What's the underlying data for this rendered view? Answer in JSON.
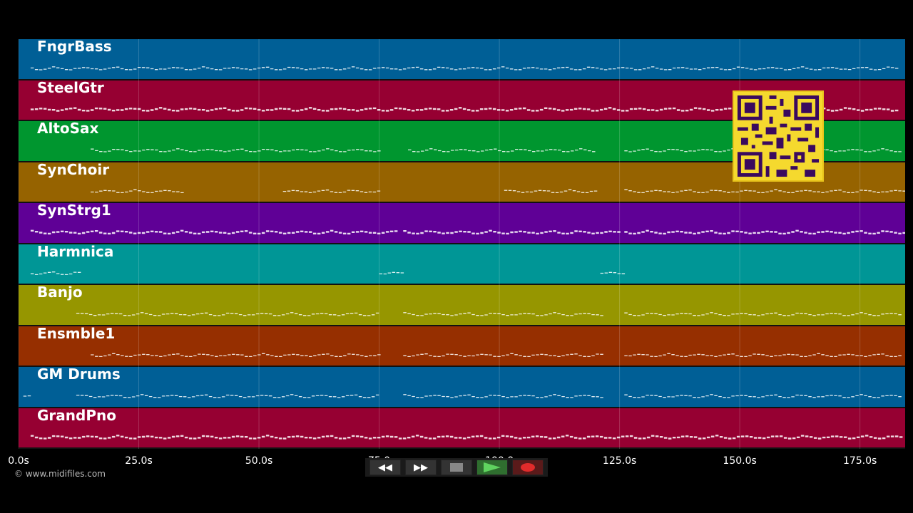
{
  "tracks": [
    {
      "name": "FngrBass",
      "color": "#005f96"
    },
    {
      "name": "SteelGtr",
      "color": "#960032"
    },
    {
      "name": "AltoSax",
      "color": "#00962f"
    },
    {
      "name": "SynChoir",
      "color": "#966300"
    },
    {
      "name": "SynStrg1",
      "color": "#5f0096"
    },
    {
      "name": "Harmnica",
      "color": "#009696"
    },
    {
      "name": "Banjo",
      "color": "#969600"
    },
    {
      "name": "Ensmble1",
      "color": "#962f00"
    },
    {
      "name": "GM Drums",
      "color": "#005f96"
    },
    {
      "name": "GrandPno",
      "color": "#960032"
    }
  ],
  "timeline": {
    "ticks": [
      "0.0s",
      "25.0s",
      "50.0s",
      "75.0",
      "100.0",
      "125.0s",
      "150.0s",
      "175.0s"
    ],
    "tick_seconds": [
      0,
      25,
      50,
      75,
      100,
      125,
      150,
      175
    ],
    "max_seconds": 184.4
  },
  "copyright": "© www.midifiles.com",
  "transport": {
    "rewind_label": "◀◀",
    "forward_label": "▶▶",
    "stop_icon": "stop-icon",
    "play_icon": "play-icon",
    "record_icon": "record-icon"
  },
  "qr_code": {
    "icon": "qr-code-icon"
  },
  "note_segments": [
    {
      "track": 0,
      "ranges": [
        [
          2.5,
          183
        ]
      ]
    },
    {
      "track": 1,
      "ranges": [
        [
          2.5,
          183
        ]
      ]
    },
    {
      "track": 2,
      "ranges": [
        [
          15,
          75
        ],
        [
          81,
          120
        ],
        [
          126,
          183
        ]
      ]
    },
    {
      "track": 3,
      "ranges": [
        [
          15,
          34
        ],
        [
          55,
          75
        ],
        [
          101,
          120
        ],
        [
          126,
          184
        ]
      ]
    },
    {
      "track": 4,
      "ranges": [
        [
          2.5,
          79
        ],
        [
          80,
          125
        ],
        [
          126,
          184
        ]
      ]
    },
    {
      "track": 5,
      "ranges": [
        [
          2.5,
          13
        ],
        [
          75,
          80
        ],
        [
          121,
          125.5
        ]
      ]
    },
    {
      "track": 6,
      "ranges": [
        [
          12,
          75
        ],
        [
          80,
          121
        ],
        [
          126,
          183
        ]
      ]
    },
    {
      "track": 7,
      "ranges": [
        [
          15,
          75
        ],
        [
          80,
          121
        ],
        [
          126,
          183
        ]
      ]
    },
    {
      "track": 8,
      "ranges": [
        [
          1,
          2.5
        ],
        [
          12,
          75
        ],
        [
          80,
          121
        ],
        [
          126,
          183
        ]
      ]
    },
    {
      "track": 9,
      "ranges": [
        [
          2.5,
          184
        ]
      ]
    }
  ]
}
